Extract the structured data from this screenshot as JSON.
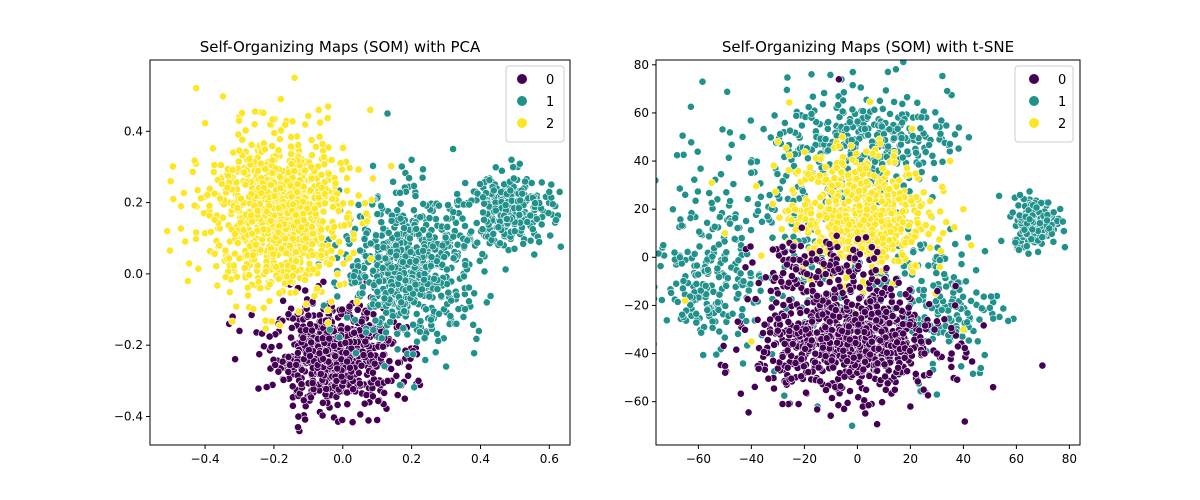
{
  "chart_data": [
    {
      "type": "scatter",
      "title": "Self-Organizing Maps (SOM) with PCA",
      "xlabel": "",
      "ylabel": "",
      "xlim": [
        -0.56,
        0.66
      ],
      "ylim": [
        -0.48,
        0.6
      ],
      "xticks": [
        -0.4,
        -0.2,
        0.0,
        0.2,
        0.4,
        0.6
      ],
      "yticks": [
        -0.4,
        -0.2,
        0.0,
        0.2,
        0.4
      ],
      "xtick_labels": [
        "−0.4",
        "−0.2",
        "0.0",
        "0.2",
        "0.4",
        "0.6"
      ],
      "ytick_labels": [
        "−0.4",
        "−0.2",
        "0.0",
        "0.2",
        "0.4"
      ],
      "grid": false,
      "legend": {
        "placement": "top-right",
        "entries": [
          "0",
          "1",
          "2"
        ]
      },
      "series": [
        {
          "name": "0",
          "color": "#440154",
          "clusters": [
            {
              "center": [
                -0.02,
                -0.23
              ],
              "spread": [
                0.09,
                0.07
              ],
              "count": 700
            }
          ],
          "points": [
            [
              -0.33,
              -0.14
            ],
            [
              -0.32,
              -0.12
            ],
            [
              -0.3,
              -0.16
            ],
            [
              0.1,
              -0.41
            ],
            [
              -0.13,
              -0.43
            ],
            [
              0.22,
              -0.3
            ],
            [
              0.18,
              -0.35
            ]
          ]
        },
        {
          "name": "1",
          "color": "#21918c",
          "clusters": [
            {
              "center": [
                0.2,
                0.02
              ],
              "spread": [
                0.1,
                0.1
              ],
              "count": 650
            },
            {
              "center": [
                0.49,
                0.18
              ],
              "spread": [
                0.06,
                0.05
              ],
              "count": 260
            }
          ],
          "points": [
            [
              0.13,
              0.45
            ],
            [
              0.49,
              0.32
            ],
            [
              0.6,
              0.23
            ],
            [
              0.63,
              0.23
            ],
            [
              0.33,
              -0.14
            ],
            [
              0.27,
              -0.22
            ],
            [
              0.3,
              -0.26
            ],
            [
              0.2,
              0.32
            ]
          ]
        },
        {
          "name": "2",
          "color": "#fde725",
          "clusters": [
            {
              "center": [
                -0.19,
                0.17
              ],
              "spread": [
                0.1,
                0.11
              ],
              "count": 1000
            }
          ],
          "points": [
            [
              -0.14,
              0.55
            ],
            [
              -0.5,
              0.26
            ],
            [
              -0.51,
              0.12
            ],
            [
              -0.45,
              -0.02
            ],
            [
              0.08,
              0.46
            ],
            [
              -0.18,
              0.49
            ],
            [
              -0.07,
              0.46
            ],
            [
              -0.47,
              0.19
            ]
          ]
        }
      ]
    },
    {
      "type": "scatter",
      "title": "Self-Organizing Maps (SOM) with t-SNE",
      "xlabel": "",
      "ylabel": "",
      "xlim": [
        -76,
        84
      ],
      "ylim": [
        -78,
        82
      ],
      "xticks": [
        -60,
        -40,
        -20,
        0,
        20,
        40,
        60,
        80
      ],
      "yticks": [
        -60,
        -40,
        -20,
        0,
        20,
        40,
        60,
        80
      ],
      "xtick_labels": [
        "−60",
        "−40",
        "−20",
        "0",
        "20",
        "40",
        "60",
        "80"
      ],
      "ytick_labels": [
        "−60",
        "−40",
        "−20",
        "0",
        "20",
        "40",
        "60",
        "80"
      ],
      "grid": false,
      "legend": {
        "placement": "top-right",
        "entries": [
          "0",
          "1",
          "2"
        ]
      },
      "series": [
        {
          "name": "1",
          "color": "#21918c",
          "clusters": [
            {
              "center": [
                5,
                50
              ],
              "spread": [
                15,
                8
              ],
              "count": 220
            },
            {
              "center": [
                -55,
                -8
              ],
              "spread": [
                8,
                14
              ],
              "count": 170
            },
            {
              "center": [
                -20,
                15
              ],
              "spread": [
                26,
                30
              ],
              "count": 320
            },
            {
              "center": [
                30,
                -20
              ],
              "spread": [
                12,
                15
              ],
              "count": 170
            },
            {
              "center": [
                67,
                15
              ],
              "spread": [
                4,
                5
              ],
              "count": 210
            }
          ],
          "points": [
            [
              -6,
              74
            ],
            [
              -67,
              0
            ],
            [
              -69,
              2
            ],
            [
              -65,
              26
            ],
            [
              -2,
              -70
            ],
            [
              -15,
              -62
            ],
            [
              50,
              -21
            ],
            [
              30,
              -57
            ]
          ]
        },
        {
          "name": "2",
          "color": "#fde725",
          "clusters": [
            {
              "center": [
                0,
                18
              ],
              "spread": [
                13,
                13
              ],
              "count": 620
            }
          ],
          "points": [
            [
              -65,
              -18
            ],
            [
              -55,
              31
            ],
            [
              -50,
              10
            ],
            [
              -30,
              48
            ],
            [
              35,
              40
            ],
            [
              40,
              20
            ],
            [
              40,
              -30
            ],
            [
              -40,
              -35
            ]
          ]
        },
        {
          "name": "0",
          "color": "#440154",
          "clusters": [
            {
              "center": [
                -3,
                -35
              ],
              "spread": [
                17,
                11
              ],
              "count": 850
            },
            {
              "center": [
                -15,
                -5
              ],
              "spread": [
                12,
                7
              ],
              "count": 120
            }
          ],
          "points": [
            [
              -7,
              74
            ],
            [
              -30,
              -15
            ],
            [
              -35,
              -28
            ],
            [
              25,
              -55
            ],
            [
              20,
              -62
            ],
            [
              -5,
              -63
            ],
            [
              30,
              -40
            ]
          ]
        }
      ]
    }
  ]
}
